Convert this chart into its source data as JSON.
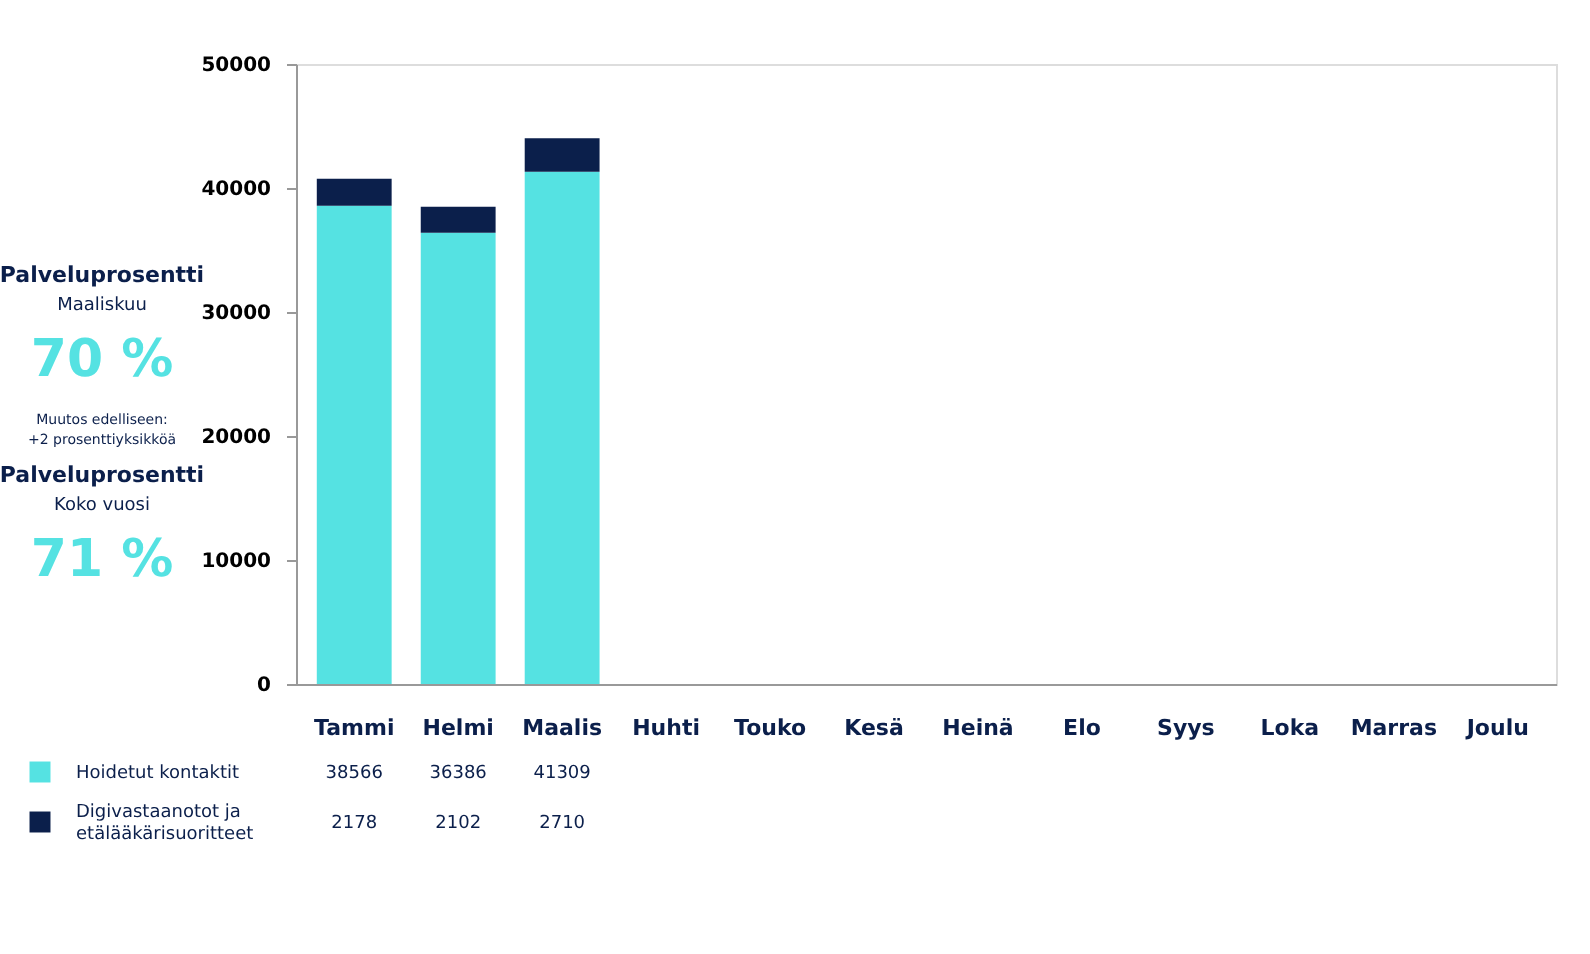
{
  "chart_data": {
    "type": "bar",
    "stacked": true,
    "categories": [
      "Tammi",
      "Helmi",
      "Maalis",
      "Huhti",
      "Touko",
      "Kesä",
      "Heinä",
      "Elo",
      "Syys",
      "Loka",
      "Marras",
      "Joulu"
    ],
    "series": [
      {
        "name": "Hoidetut kontaktit",
        "color": "#55e2e2",
        "values": [
          38566,
          36386,
          41309,
          null,
          null,
          null,
          null,
          null,
          null,
          null,
          null,
          null
        ]
      },
      {
        "name": "Digivastaanotot ja etälääkärisuoritteet",
        "color": "#0b1f4b",
        "values": [
          2178,
          2102,
          2710,
          null,
          null,
          null,
          null,
          null,
          null,
          null,
          null,
          null
        ]
      }
    ],
    "ylim": [
      0,
      50000
    ],
    "yticks": [
      0,
      10000,
      20000,
      30000,
      40000,
      50000
    ],
    "grid": false,
    "legend": "bottom left",
    "data_labels": true,
    "annotations": [
      "Palveluprosentti",
      "Maaliskuu",
      "70 %",
      "Muutos edelliseen:",
      "+2 prosenttiyksikköä",
      "Palveluprosentti",
      "Koko vuosi",
      "71 %"
    ]
  }
}
